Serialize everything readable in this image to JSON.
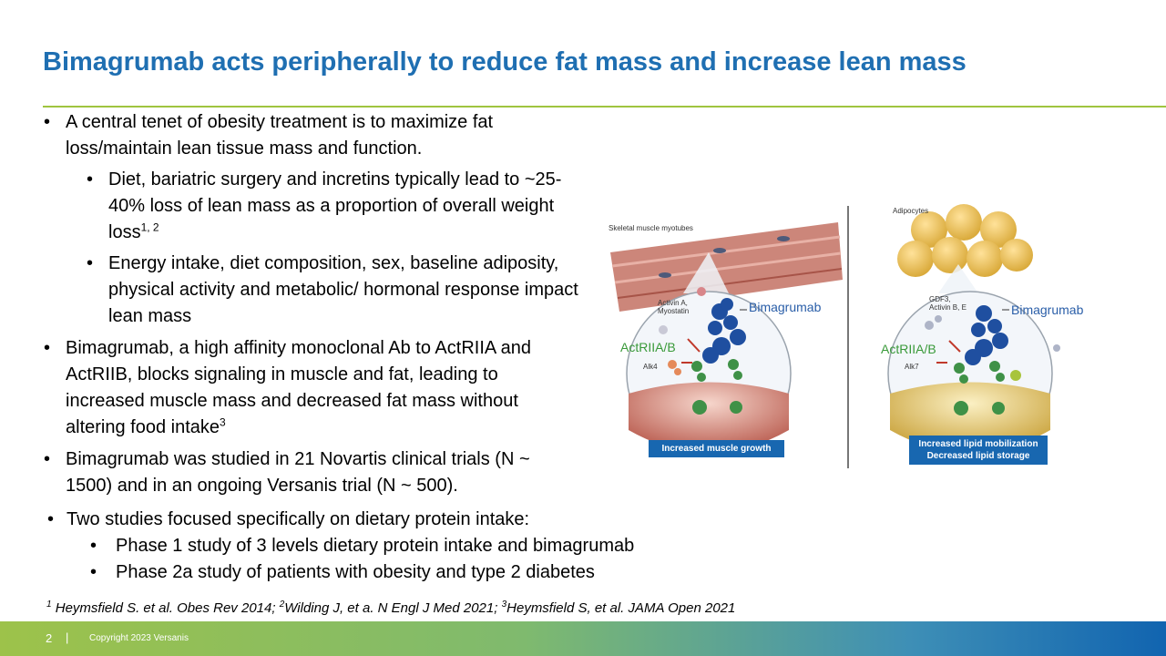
{
  "title": "Bimagrumab acts peripherally to reduce fat mass and increase lean mass",
  "bullets": [
    {
      "text": "A central tenet of obesity treatment is to maximize fat loss/maintain lean tissue mass and function."
    },
    {
      "text": "Diet, bariatric surgery and incretins typically lead to ~25-40% loss of lean mass as a proportion of overall weight loss",
      "sup": "1, 2"
    },
    {
      "text": "Energy intake, diet composition, sex, baseline adiposity, physical activity and metabolic/ hormonal response impact lean mass"
    },
    {
      "text": "Bimagrumab, a high affinity monoclonal Ab to ActRIIA and ActRIIB, blocks signaling in muscle and fat, leading to increased muscle mass and decreased fat mass without altering food intake",
      "sup": "3"
    },
    {
      "text": "Bimagrumab was studied in 21 Novartis clinical trials (N ~ 1500) and in an ongoing Versanis trial (N ~ 500)."
    }
  ],
  "lower": {
    "main": "Two studies focused specifically on dietary protein intake:",
    "subs": [
      "Phase 1 study of 3 levels dietary protein intake and bimagrumab",
      "Phase 2a study of patients with obesity and type 2 diabetes"
    ]
  },
  "figure": {
    "left": {
      "tissue_label": "Skeletal muscle myotubes",
      "ligand_label": "Activin A, Myostatin",
      "drug_label": "Bimagrumab",
      "receptor_label": "ActRIIA/B",
      "coreceptor_label": "Alk4",
      "caption": "Increased muscle growth"
    },
    "right": {
      "tissue_label": "Adipocytes",
      "ligand_label": "GDF3, Activin B, E",
      "drug_label": "Bimagrumab",
      "receptor_label": "ActRIIA/B",
      "coreceptor_label": "Alk7",
      "caption_line1": "Increased lipid mobilization",
      "caption_line2": "Decreased lipid storage"
    }
  },
  "footnote": {
    "s1": "1",
    "t1": " Heymsfield S. et al. Obes Rev 2014; ",
    "s2": "2",
    "t2": "Wilding J, et a. N Engl J Med 2021; ",
    "s3": "3",
    "t3": "Heymsfield S, et al. JAMA Open 2021"
  },
  "footer": {
    "page_number": "2",
    "separator": "|",
    "copyright": "Copyright 2023 Versanis"
  },
  "colors": {
    "title": "#1f6fb2",
    "rule": "#9fc43f",
    "caption_bg": "#1867b0"
  }
}
